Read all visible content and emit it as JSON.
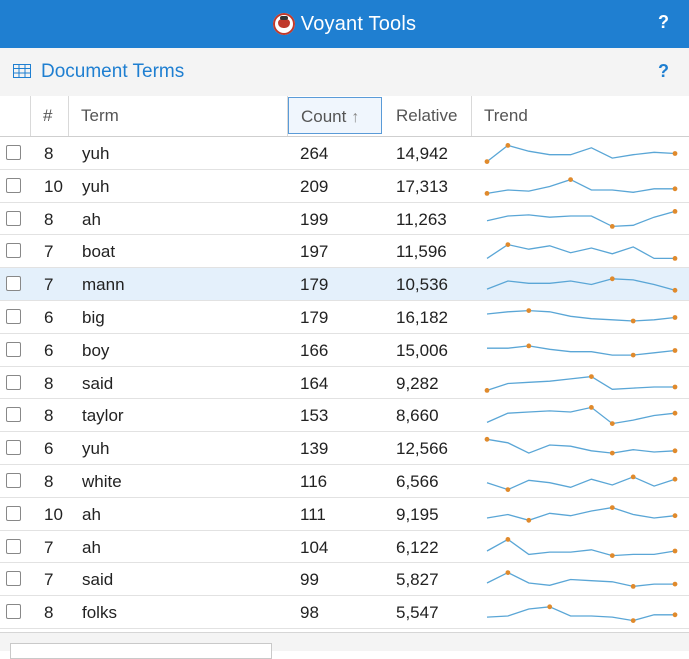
{
  "app": {
    "title": "Voyant Tools",
    "help": "?"
  },
  "panel": {
    "title": "Document Terms",
    "help": "?"
  },
  "columns": {
    "num": "#",
    "term": "Term",
    "count": "Count",
    "relative": "Relative",
    "trend": "Trend"
  },
  "colors": {
    "accent": "#1f7fd1",
    "trend_line": "#5aa6d6",
    "trend_dot": "#e08a2c"
  },
  "rows": [
    {
      "num": "8",
      "term": "yuh",
      "count": "264",
      "relative": "14,942",
      "trend": [
        0.85,
        0.15,
        0.4,
        0.55,
        0.55,
        0.25,
        0.7,
        0.55,
        0.45,
        0.5
      ],
      "dots": [
        0,
        1,
        9
      ]
    },
    {
      "num": "10",
      "term": "yuh",
      "count": "209",
      "relative": "17,313",
      "trend": [
        0.8,
        0.65,
        0.7,
        0.5,
        0.2,
        0.65,
        0.65,
        0.75,
        0.6,
        0.6
      ],
      "dots": [
        0,
        4,
        9
      ]
    },
    {
      "num": "8",
      "term": "ah",
      "count": "199",
      "relative": "11,263",
      "trend": [
        0.55,
        0.35,
        0.3,
        0.4,
        0.35,
        0.35,
        0.8,
        0.75,
        0.4,
        0.15
      ],
      "dots": [
        6,
        9
      ]
    },
    {
      "num": "7",
      "term": "boat",
      "count": "197",
      "relative": "11,596",
      "trend": [
        0.8,
        0.2,
        0.4,
        0.25,
        0.55,
        0.35,
        0.6,
        0.3,
        0.8,
        0.8
      ],
      "dots": [
        1,
        9
      ]
    },
    {
      "num": "7",
      "term": "mann",
      "count": "179",
      "relative": "10,536",
      "trend": [
        0.7,
        0.35,
        0.45,
        0.45,
        0.35,
        0.5,
        0.25,
        0.3,
        0.5,
        0.75
      ],
      "dots": [
        6,
        9
      ]
    },
    {
      "num": "6",
      "term": "big",
      "count": "179",
      "relative": "16,182",
      "trend": [
        0.35,
        0.25,
        0.2,
        0.25,
        0.45,
        0.55,
        0.6,
        0.65,
        0.6,
        0.5
      ],
      "dots": [
        2,
        7,
        9
      ]
    },
    {
      "num": "6",
      "term": "boy",
      "count": "166",
      "relative": "15,006",
      "trend": [
        0.4,
        0.4,
        0.3,
        0.45,
        0.55,
        0.55,
        0.7,
        0.7,
        0.6,
        0.5
      ],
      "dots": [
        2,
        7,
        9
      ]
    },
    {
      "num": "8",
      "term": "said",
      "count": "164",
      "relative": "9,282",
      "trend": [
        0.8,
        0.5,
        0.45,
        0.4,
        0.3,
        0.2,
        0.75,
        0.7,
        0.65,
        0.65
      ],
      "dots": [
        0,
        5,
        9
      ]
    },
    {
      "num": "8",
      "term": "taylor",
      "count": "153",
      "relative": "8,660",
      "trend": [
        0.8,
        0.4,
        0.35,
        0.3,
        0.35,
        0.15,
        0.85,
        0.7,
        0.5,
        0.4
      ],
      "dots": [
        5,
        6,
        9
      ]
    },
    {
      "num": "6",
      "term": "yuh",
      "count": "139",
      "relative": "12,566",
      "trend": [
        0.1,
        0.25,
        0.7,
        0.35,
        0.4,
        0.6,
        0.7,
        0.55,
        0.65,
        0.6
      ],
      "dots": [
        0,
        6,
        9
      ]
    },
    {
      "num": "8",
      "term": "white",
      "count": "116",
      "relative": "6,566",
      "trend": [
        0.55,
        0.85,
        0.45,
        0.55,
        0.75,
        0.4,
        0.65,
        0.3,
        0.7,
        0.4
      ],
      "dots": [
        1,
        7,
        9
      ]
    },
    {
      "num": "10",
      "term": "ah",
      "count": "111",
      "relative": "9,195",
      "trend": [
        0.65,
        0.5,
        0.75,
        0.45,
        0.55,
        0.35,
        0.2,
        0.5,
        0.65,
        0.55
      ],
      "dots": [
        2,
        6,
        9
      ]
    },
    {
      "num": "7",
      "term": "ah",
      "count": "104",
      "relative": "6,122",
      "trend": [
        0.65,
        0.15,
        0.8,
        0.7,
        0.7,
        0.6,
        0.85,
        0.8,
        0.8,
        0.65
      ],
      "dots": [
        1,
        6,
        9
      ]
    },
    {
      "num": "7",
      "term": "said",
      "count": "99",
      "relative": "5,827",
      "trend": [
        0.65,
        0.2,
        0.65,
        0.75,
        0.5,
        0.55,
        0.6,
        0.8,
        0.7,
        0.7
      ],
      "dots": [
        1,
        7,
        9
      ]
    },
    {
      "num": "8",
      "term": "folks",
      "count": "98",
      "relative": "5,547",
      "trend": [
        0.7,
        0.65,
        0.35,
        0.25,
        0.65,
        0.65,
        0.7,
        0.85,
        0.6,
        0.6
      ],
      "dots": [
        3,
        7,
        9
      ]
    }
  ]
}
